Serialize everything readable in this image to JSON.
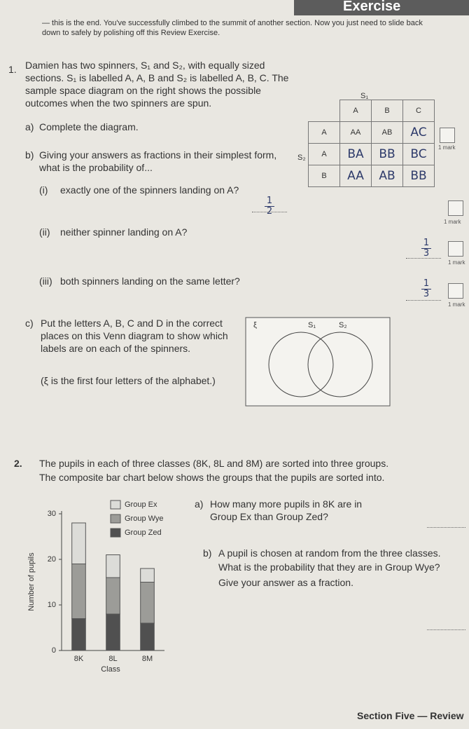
{
  "header": {
    "title": "Exercise"
  },
  "intro": "— this is the end. You've successfully climbed to the summit of another section. Now you just need to slide back down to safely by polishing off this Review Exercise.",
  "q1": {
    "number": "1.",
    "text": "Damien has two spinners, S₁ and S₂, with equally sized sections. S₁ is labelled A, A, B and S₂ is labelled A, B, C. The sample space diagram on the right shows the possible outcomes when the two spinners are spun.",
    "a": {
      "label": "a)",
      "text": "Complete the diagram.",
      "marks": "1 mark"
    },
    "table": {
      "col_header": "S₁",
      "row_header": "S₂",
      "cols": [
        "A",
        "B",
        "C"
      ],
      "rows": [
        {
          "label": "A",
          "cells": [
            "AA",
            "AB",
            "AC"
          ]
        },
        {
          "label": "A",
          "cells": [
            "BA",
            "BB",
            "BC"
          ]
        },
        {
          "label": "B",
          "cells": [
            "AA",
            "AB",
            "BB"
          ]
        }
      ]
    },
    "b": {
      "label": "b)",
      "text": "Giving your answers as fractions in their simplest form, what is the probability of...",
      "parts": [
        {
          "label": "(i)",
          "text": "exactly one of the spinners landing on A?",
          "answer": {
            "numerator": "1",
            "denominator": "2"
          },
          "marks": "1 mark"
        },
        {
          "label": "(ii)",
          "text": "neither spinner landing on A?",
          "answer": {
            "numerator": "1",
            "denominator": "3"
          },
          "marks": "1 mark"
        },
        {
          "label": "(iii)",
          "text": "both spinners landing on the same letter?",
          "answer": {
            "numerator": "1",
            "denominator": "3"
          },
          "marks": "1 mark"
        }
      ]
    },
    "c": {
      "label": "c)",
      "text": "Put the letters A, B, C and D in the correct places on this Venn diagram to show which labels are on each of the spinners.",
      "note": "(ξ is the first four letters of the alphabet.)",
      "venn": {
        "universal": "ξ",
        "left": "S₁",
        "right": "S₂"
      }
    }
  },
  "q2": {
    "number": "2.",
    "text": "The pupils in each of three classes (8K, 8L and 8M) are sorted into three groups.",
    "text2": "The composite bar chart below shows the groups that the pupils are sorted into.",
    "a": {
      "label": "a)",
      "text": "How many more pupils in 8K are in Group Ex than Group Zed?"
    },
    "b": {
      "label": "b)",
      "text": "A pupil is chosen at random from the three classes.",
      "text2": "What is the probability that they are in Group Wye?",
      "text3": "Give your answer as a fraction."
    }
  },
  "chart_data": {
    "type": "stacked-bar",
    "x_label": "Class",
    "y_label": "Number of pupils",
    "categories": [
      "8K",
      "8L",
      "8M"
    ],
    "series": [
      {
        "name": "Group Ex",
        "color": "#dcdcd8",
        "values": [
          9,
          5,
          3
        ]
      },
      {
        "name": "Group Wye",
        "color": "#9c9c98",
        "values": [
          12,
          8,
          9
        ]
      },
      {
        "name": "Group Zed",
        "color": "#505050",
        "values": [
          7,
          8,
          6
        ]
      }
    ],
    "ylim": [
      0,
      30
    ],
    "yticks": [
      0,
      10,
      20,
      30
    ]
  },
  "footer": "Section Five — Review"
}
